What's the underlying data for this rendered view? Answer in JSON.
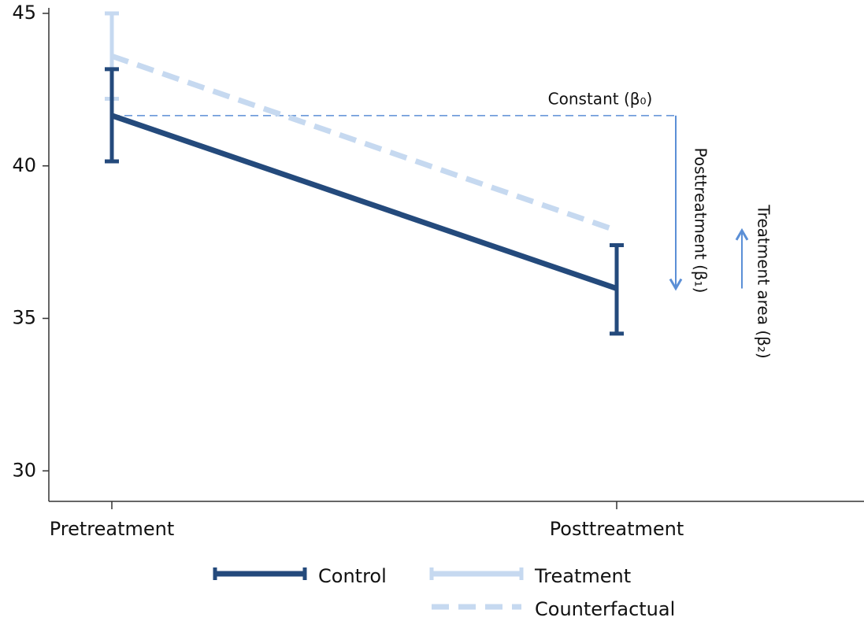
{
  "chart_data": {
    "type": "line",
    "categories": [
      "Pretreatment",
      "Posttreatment"
    ],
    "ylim": [
      29,
      45
    ],
    "yticks": [
      30,
      35,
      40,
      45
    ],
    "series": [
      {
        "name": "Control",
        "color": "#244a7c",
        "line": "solid",
        "values": [
          41.65,
          35.98
        ],
        "lower": [
          40.15,
          34.5
        ],
        "upper": [
          43.17,
          37.4
        ]
      },
      {
        "name": "Treatment",
        "color": "#c6d9f0",
        "line": "solid",
        "values": [
          43.6,
          null
        ],
        "lower": [
          42.2,
          null
        ],
        "upper": [
          45,
          null
        ]
      },
      {
        "name": "Counterfactual",
        "color": "#c6d9f0",
        "line": "dashed",
        "values": [
          43.6,
          37.88
        ]
      }
    ],
    "annotation_color": "#5b8fd6",
    "annotations": {
      "constant": "Constant (β₀)",
      "posttreatment": "Posttreatment (β₁)",
      "treatment_area": "Treatment area (β₂)"
    }
  }
}
